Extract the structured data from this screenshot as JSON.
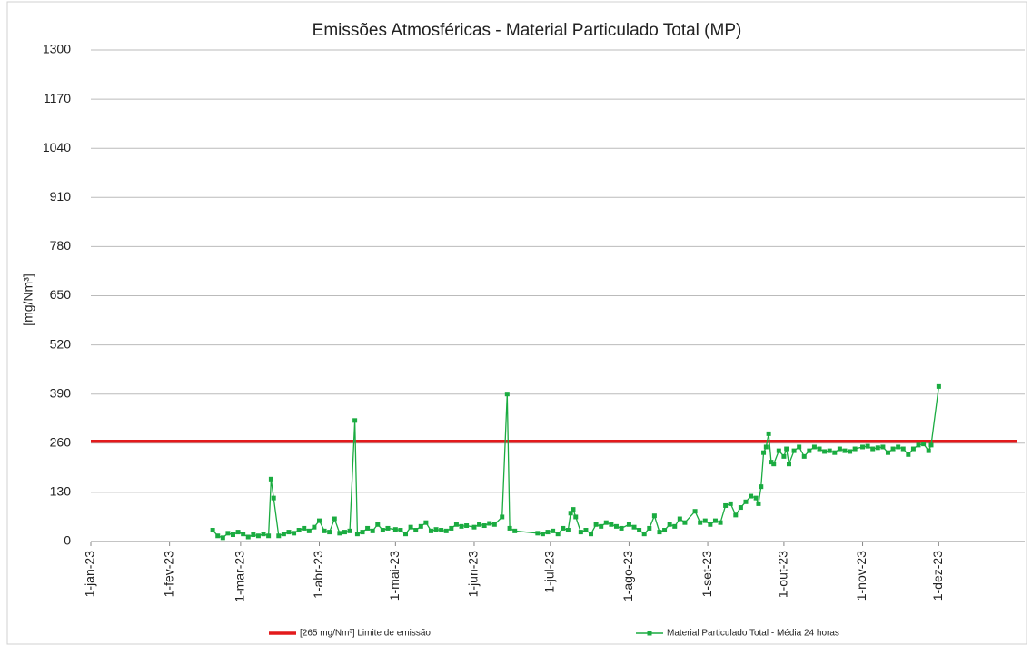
{
  "chart_data": {
    "type": "line",
    "title": "Emissões Atmosféricas - Material Particulado Total (MP)",
    "ylabel": "[mg/Nm³]",
    "xlim": [
      "2023-01-01",
      "2024-01-01"
    ],
    "xticks": [
      {
        "value": "2023-01-01",
        "label": "1-jan-23"
      },
      {
        "value": "2023-02-01",
        "label": "1-fev-23"
      },
      {
        "value": "2023-03-01",
        "label": "1-mar-23"
      },
      {
        "value": "2023-04-01",
        "label": "1-abr-23"
      },
      {
        "value": "2023-05-01",
        "label": "1-mai-23"
      },
      {
        "value": "2023-06-01",
        "label": "1-jun-23"
      },
      {
        "value": "2023-07-01",
        "label": "1-jul-23"
      },
      {
        "value": "2023-08-01",
        "label": "1-ago-23"
      },
      {
        "value": "2023-09-01",
        "label": "1-set-23"
      },
      {
        "value": "2023-10-01",
        "label": "1-out-23"
      },
      {
        "value": "2023-11-01",
        "label": "1-nov-23"
      },
      {
        "value": "2023-12-01",
        "label": "1-dez-23"
      }
    ],
    "ylim": [
      0,
      1300
    ],
    "yticks": [
      0,
      130,
      260,
      390,
      520,
      650,
      780,
      910,
      1040,
      1170,
      1300
    ],
    "grid": true,
    "legend": "bottom",
    "series": [
      {
        "name": "[265 mg/Nm³] Limite de emissão",
        "color": "#e31a1c",
        "marker": false,
        "x": [
          "2023-01-01",
          "2024-01-01"
        ],
        "values": [
          265,
          265
        ]
      },
      {
        "name": "Material Particulado Total - Média 24 horas",
        "color": "#1aab40",
        "marker": true,
        "x": [
          "2023-02-18",
          "2023-02-20",
          "2023-02-22",
          "2023-02-24",
          "2023-02-26",
          "2023-02-28",
          "2023-03-02",
          "2023-03-04",
          "2023-03-06",
          "2023-03-08",
          "2023-03-10",
          "2023-03-12",
          "2023-03-13",
          "2023-03-14",
          "2023-03-16",
          "2023-03-18",
          "2023-03-20",
          "2023-03-22",
          "2023-03-24",
          "2023-03-26",
          "2023-03-28",
          "2023-03-30",
          "2023-04-01",
          "2023-04-03",
          "2023-04-05",
          "2023-04-07",
          "2023-04-09",
          "2023-04-11",
          "2023-04-13",
          "2023-04-15",
          "2023-04-16",
          "2023-04-18",
          "2023-04-20",
          "2023-04-22",
          "2023-04-24",
          "2023-04-26",
          "2023-04-28",
          "2023-05-01",
          "2023-05-03",
          "2023-05-05",
          "2023-05-07",
          "2023-05-09",
          "2023-05-11",
          "2023-05-13",
          "2023-05-15",
          "2023-05-17",
          "2023-05-19",
          "2023-05-21",
          "2023-05-23",
          "2023-05-25",
          "2023-05-27",
          "2023-05-29",
          "2023-06-01",
          "2023-06-03",
          "2023-06-05",
          "2023-06-07",
          "2023-06-09",
          "2023-06-12",
          "2023-06-14",
          "2023-06-15",
          "2023-06-17",
          "2023-06-26",
          "2023-06-28",
          "2023-06-30",
          "2023-07-02",
          "2023-07-04",
          "2023-07-06",
          "2023-07-08",
          "2023-07-09",
          "2023-07-10",
          "2023-07-11",
          "2023-07-13",
          "2023-07-15",
          "2023-07-17",
          "2023-07-19",
          "2023-07-21",
          "2023-07-23",
          "2023-07-25",
          "2023-07-27",
          "2023-07-29",
          "2023-08-01",
          "2023-08-03",
          "2023-08-05",
          "2023-08-07",
          "2023-08-09",
          "2023-08-11",
          "2023-08-13",
          "2023-08-15",
          "2023-08-17",
          "2023-08-19",
          "2023-08-21",
          "2023-08-23",
          "2023-08-27",
          "2023-08-29",
          "2023-08-31",
          "2023-09-02",
          "2023-09-04",
          "2023-09-06",
          "2023-09-08",
          "2023-09-10",
          "2023-09-12",
          "2023-09-14",
          "2023-09-16",
          "2023-09-18",
          "2023-09-20",
          "2023-09-21",
          "2023-09-22",
          "2023-09-23",
          "2023-09-24",
          "2023-09-25",
          "2023-09-26",
          "2023-09-27",
          "2023-09-29",
          "2023-10-01",
          "2023-10-02",
          "2023-10-03",
          "2023-10-05",
          "2023-10-07",
          "2023-10-09",
          "2023-10-11",
          "2023-10-13",
          "2023-10-15",
          "2023-10-17",
          "2023-10-19",
          "2023-10-21",
          "2023-10-23",
          "2023-10-25",
          "2023-10-27",
          "2023-10-29",
          "2023-11-01",
          "2023-11-03",
          "2023-11-05",
          "2023-11-07",
          "2023-11-09",
          "2023-11-11",
          "2023-11-13",
          "2023-11-15",
          "2023-11-17",
          "2023-11-19",
          "2023-11-21",
          "2023-11-23",
          "2023-11-25",
          "2023-11-27",
          "2023-11-28",
          "2023-12-01"
        ],
        "values": [
          30,
          15,
          10,
          22,
          18,
          25,
          20,
          12,
          18,
          15,
          20,
          15,
          165,
          115,
          15,
          20,
          25,
          22,
          30,
          35,
          28,
          38,
          55,
          28,
          25,
          60,
          22,
          25,
          28,
          320,
          20,
          25,
          35,
          28,
          45,
          30,
          35,
          32,
          30,
          20,
          38,
          30,
          40,
          50,
          28,
          32,
          30,
          28,
          35,
          45,
          40,
          42,
          38,
          45,
          42,
          48,
          45,
          65,
          390,
          35,
          28,
          22,
          20,
          25,
          28,
          20,
          35,
          30,
          75,
          85,
          65,
          25,
          30,
          20,
          45,
          40,
          50,
          45,
          40,
          35,
          45,
          38,
          30,
          20,
          35,
          68,
          25,
          30,
          45,
          40,
          60,
          50,
          80,
          50,
          55,
          45,
          55,
          50,
          95,
          100,
          70,
          90,
          105,
          120,
          115,
          100,
          145,
          235,
          250,
          285,
          210,
          205,
          240,
          225,
          245,
          205,
          240,
          250,
          225,
          240,
          250,
          245,
          238,
          240,
          235,
          245,
          240,
          238,
          245,
          250,
          252,
          245,
          248,
          250,
          235,
          245,
          250,
          245,
          230,
          245,
          255,
          258,
          240,
          255,
          410
        ]
      }
    ]
  }
}
